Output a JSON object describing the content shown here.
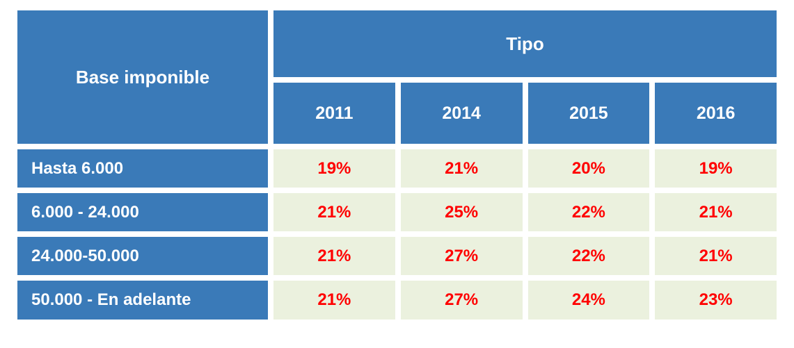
{
  "colors": {
    "header_blue": "#3a7ab8",
    "cell_light_green": "#ebf1de",
    "value_red": "#ff0000",
    "header_text_white": "#ffffff"
  },
  "chart_data": {
    "type": "table",
    "corner_header": "Base imponible",
    "group_header": "Tipo",
    "columns": [
      "2011",
      "2014",
      "2015",
      "2016"
    ],
    "rows": [
      {
        "label": "Hasta 6.000",
        "values": [
          "19%",
          "21%",
          "20%",
          "19%"
        ]
      },
      {
        "label": "6.000 - 24.000",
        "values": [
          "21%",
          "25%",
          "22%",
          "21%"
        ]
      },
      {
        "label": "24.000-50.000",
        "values": [
          "21%",
          "27%",
          "22%",
          "21%"
        ]
      },
      {
        "label": "50.000 - En adelante",
        "values": [
          "21%",
          "27%",
          "24%",
          "23%"
        ]
      }
    ]
  }
}
